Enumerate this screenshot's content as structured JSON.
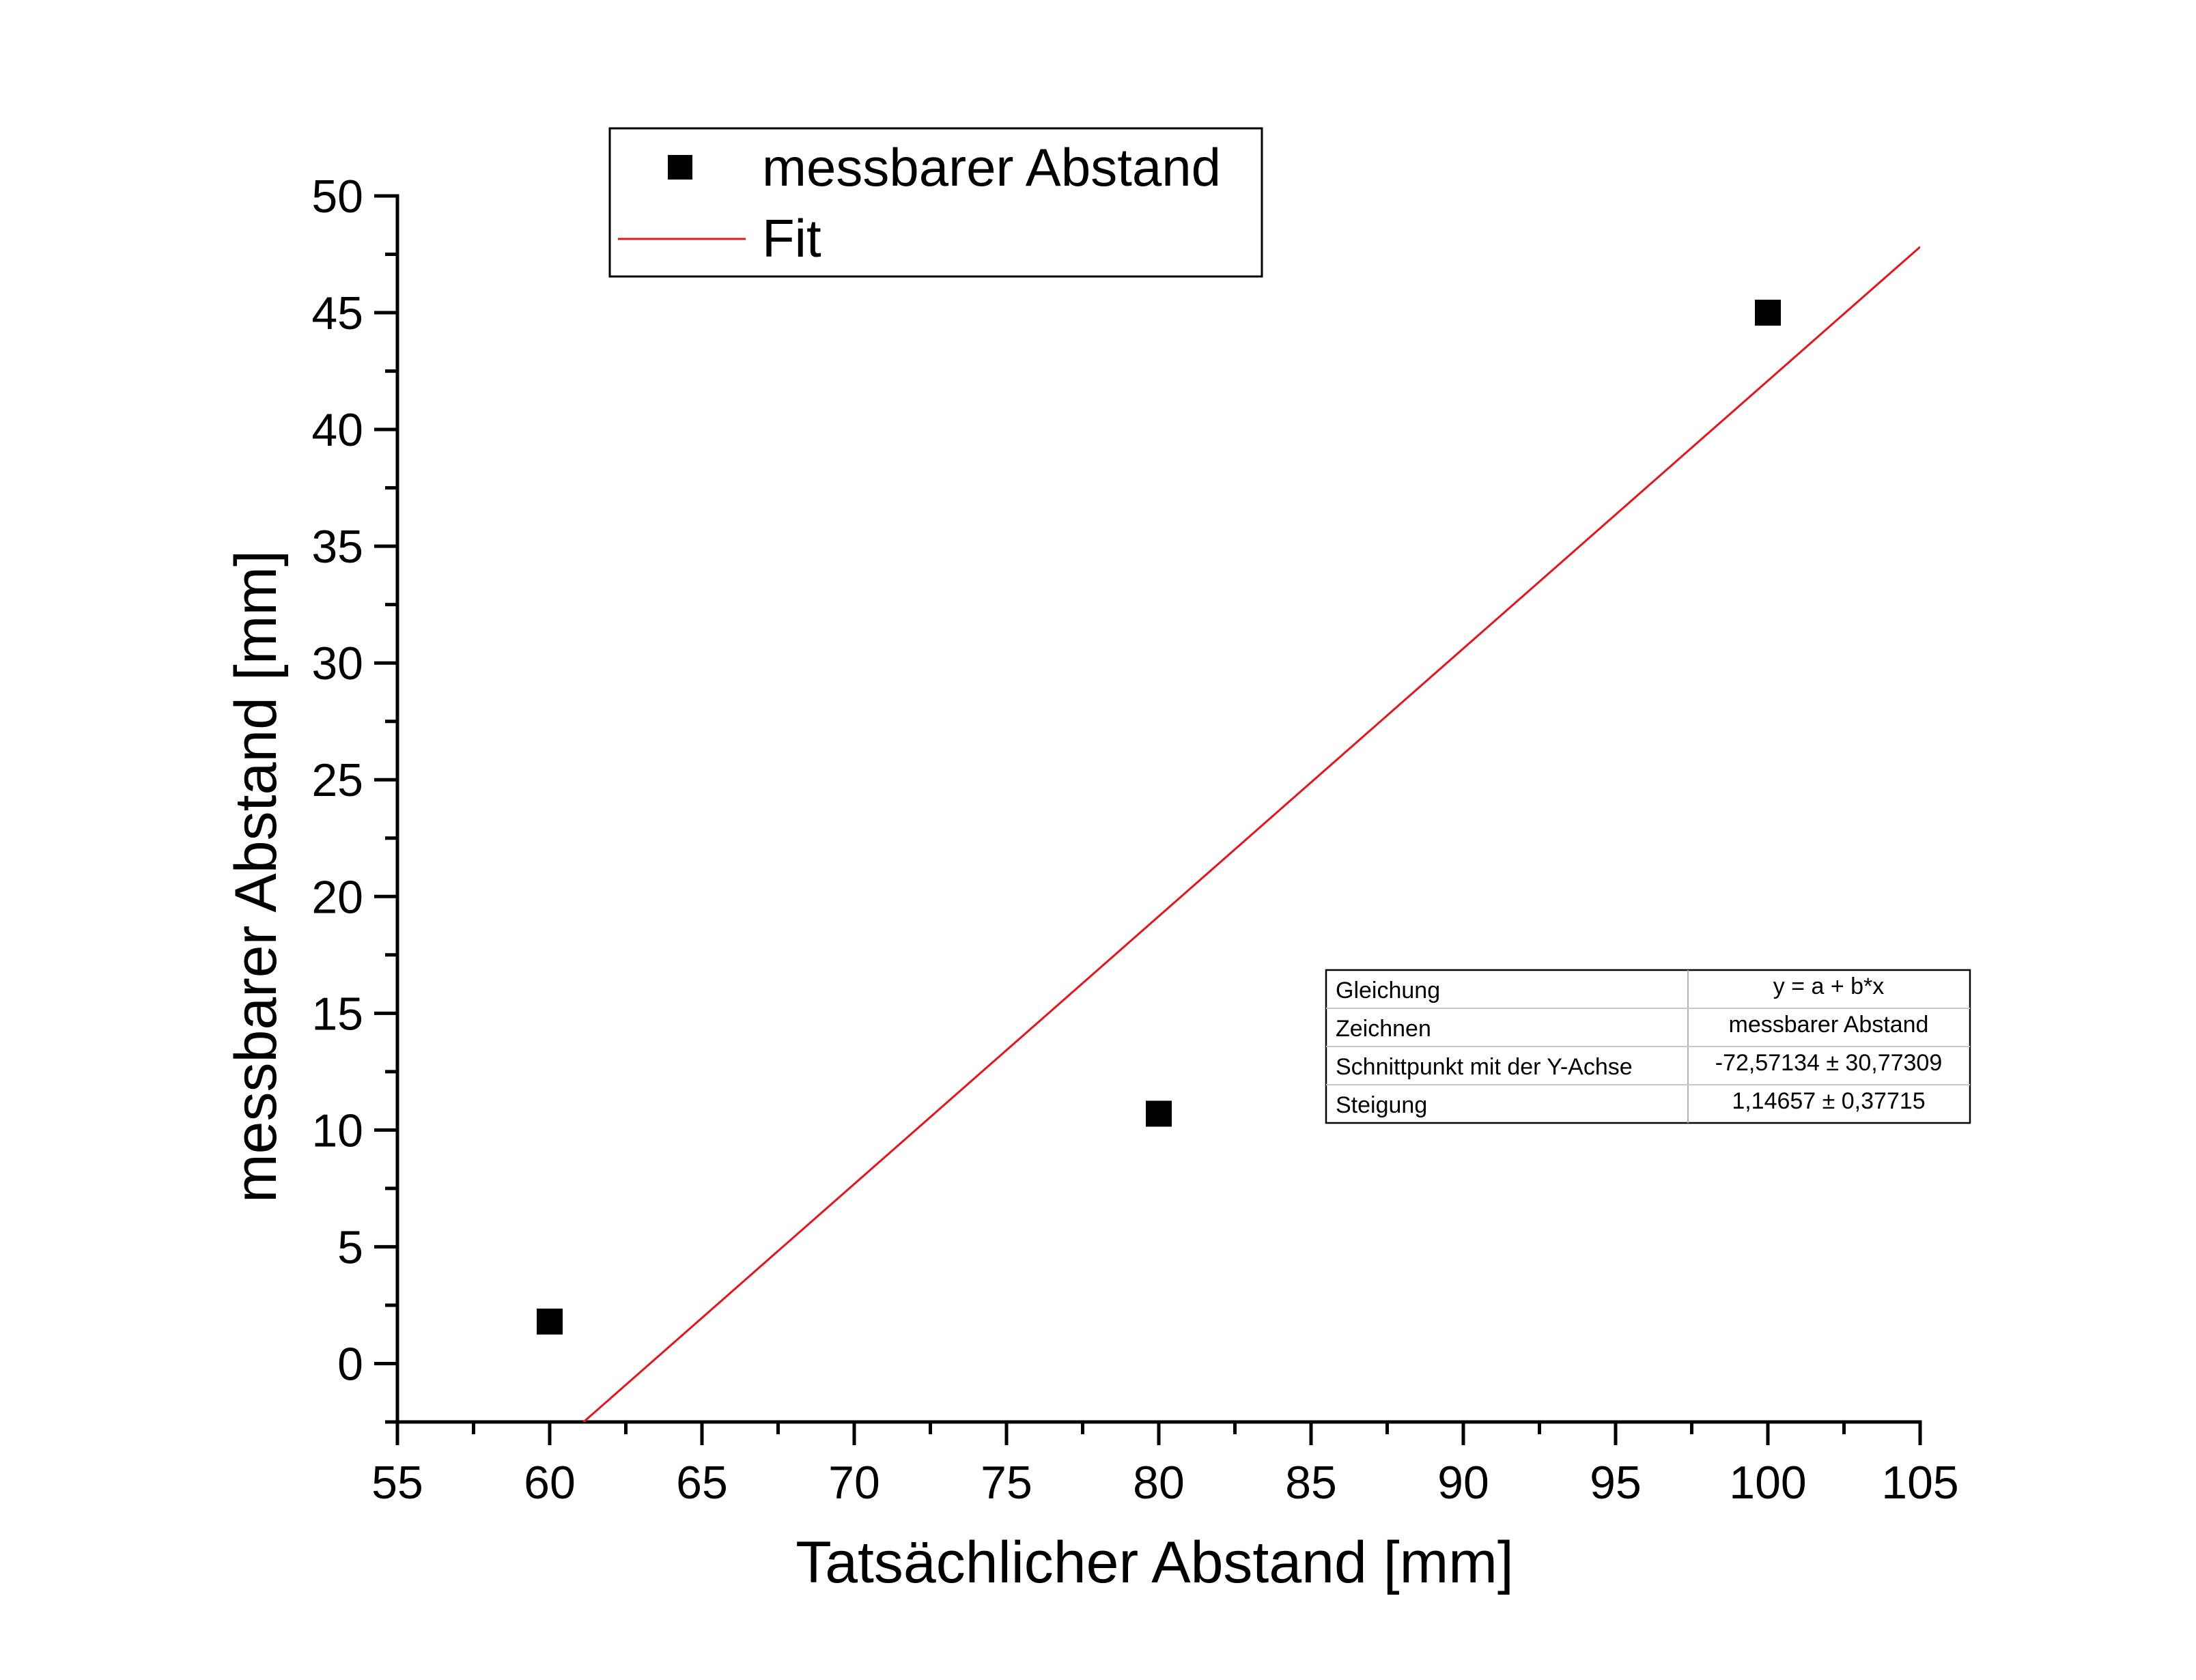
{
  "chart_data": {
    "type": "scatter",
    "xlabel": "Tatsächlicher Abstand [mm]",
    "ylabel": "messbarer Abstand [mm]",
    "xlim": [
      55,
      105
    ],
    "ylim": [
      -2.5,
      50
    ],
    "x_major_ticks": [
      55,
      60,
      65,
      70,
      75,
      80,
      85,
      90,
      95,
      100,
      105
    ],
    "y_major_ticks": [
      0,
      5,
      10,
      15,
      20,
      25,
      30,
      35,
      40,
      45,
      50
    ],
    "grid": false,
    "series": [
      {
        "name": "messbarer Abstand",
        "kind": "scatter",
        "marker": "square",
        "color": "#000000",
        "points": [
          {
            "x": 60,
            "y": 1.8
          },
          {
            "x": 80,
            "y": 10.7
          },
          {
            "x": 100,
            "y": 45.0
          }
        ]
      },
      {
        "name": "Fit",
        "kind": "line",
        "color": "#e8141b",
        "intercept": -72.57134,
        "slope": 1.14657,
        "x_range": [
          61.1,
          105
        ]
      }
    ],
    "legend": {
      "placement": "top-left",
      "entries": [
        "messbarer Abstand",
        "Fit"
      ]
    },
    "fit_table": {
      "placement": "right-middle",
      "rows": [
        {
          "label": "Gleichung",
          "value": "y = a + b*x"
        },
        {
          "label": "Zeichnen",
          "value": "messbarer Abstand"
        },
        {
          "label": "Schnittpunkt mit der Y-Achse",
          "value": "-72,57134 ± 30,77309"
        },
        {
          "label": "Steigung",
          "value": "1,14657 ± 0,37715"
        }
      ]
    }
  }
}
